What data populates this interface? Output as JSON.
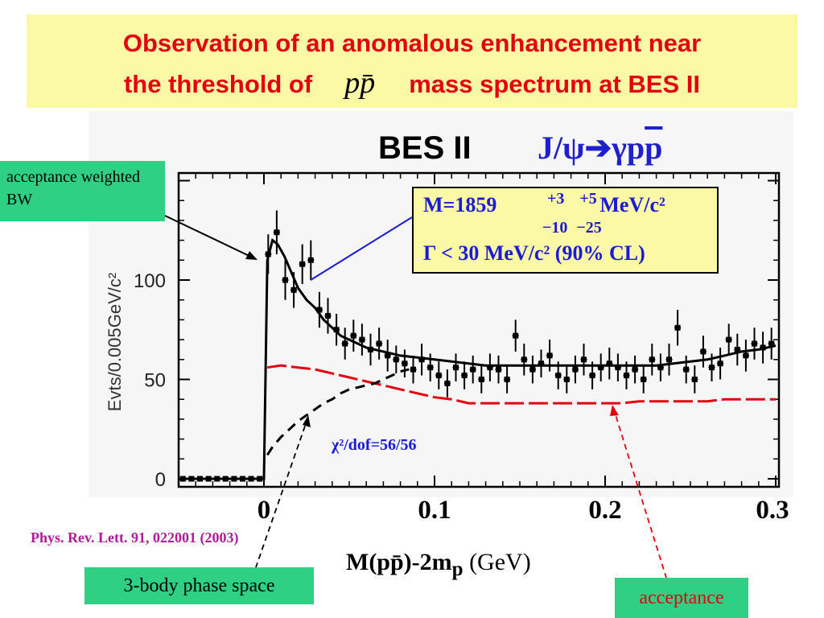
{
  "slide": {
    "title_line1": "Observation of an anomalous enhancement near",
    "title_line2_pre": "the threshold of",
    "title_line2_symbol": "pp̄",
    "title_line2_post": "mass spectrum at BES II",
    "title_color": "#e3000f",
    "title_bg": "#fbf8a6"
  },
  "experiment": "BES II",
  "reaction": {
    "prefix": "J/ψ",
    "arrow": "➔",
    "gamma": "γp",
    "pbar": "p",
    "color": "#1f1fd0"
  },
  "fit_box": {
    "mass_prefix": "M=1859",
    "mass_err_plus": "+3 +5",
    "mass_err_minus": "−10 −25",
    "mass_unit": "MeV/c²",
    "width_text": "Γ < 30 MeV/c² (90% CL)"
  },
  "chi2_text": "χ²/dof=56/56",
  "reference": "Phys. Rev. Lett. 91, 022001 (2003)",
  "x_axis_label": {
    "pre": "M(pp̄)-2m",
    "sub": "p",
    "post": " (GeV)"
  },
  "labels": {
    "acceptance_bw": "acceptance weighted BW",
    "phase_space": "3-body phase space",
    "acceptance": "acceptance"
  },
  "colors": {
    "label_green": "#2fd083",
    "acceptance_red": "#e3000f",
    "fit_text_blue": "#1a1ad9",
    "reference_magenta": "#b01b9a"
  },
  "chart_data": {
    "type": "scatter",
    "x_ticks": [
      "0",
      "0.1",
      "0.2",
      "0.3"
    ],
    "y_ticks": [
      "0",
      "50",
      "100"
    ],
    "y_axis_label": "Evts/0.005GeV/c²",
    "xlim": [
      -0.05,
      0.3
    ],
    "ylim": [
      -5,
      155
    ],
    "series": [
      {
        "name": "data",
        "kind": "points_with_errors",
        "x": [
          -0.0475,
          -0.0425,
          -0.0375,
          -0.0325,
          -0.0275,
          -0.0225,
          -0.0175,
          -0.0125,
          -0.0075,
          -0.0025,
          0.0025,
          0.0075,
          0.0125,
          0.0175,
          0.0225,
          0.0275,
          0.0325,
          0.0375,
          0.0425,
          0.0475,
          0.0525,
          0.0575,
          0.0625,
          0.0675,
          0.0725,
          0.0775,
          0.0825,
          0.0875,
          0.0925,
          0.0975,
          0.1025,
          0.1075,
          0.1125,
          0.1175,
          0.1225,
          0.1275,
          0.1325,
          0.1375,
          0.1425,
          0.1475,
          0.1525,
          0.1575,
          0.1625,
          0.1675,
          0.1725,
          0.1775,
          0.1825,
          0.1875,
          0.1925,
          0.1975,
          0.2025,
          0.2075,
          0.2125,
          0.2175,
          0.2225,
          0.2275,
          0.2325,
          0.2375,
          0.2425,
          0.2475,
          0.2525,
          0.2575,
          0.2625,
          0.2675,
          0.2725,
          0.2775,
          0.2825,
          0.2875,
          0.2925,
          0.2975
        ],
        "y": [
          0,
          0,
          0,
          0,
          0,
          0,
          0,
          0,
          0,
          0,
          113,
          124,
          100,
          95,
          108,
          110,
          85,
          82,
          75,
          68,
          72,
          70,
          65,
          68,
          62,
          60,
          58,
          55,
          60,
          56,
          52,
          48,
          56,
          52,
          55,
          50,
          56,
          55,
          50,
          72,
          60,
          55,
          58,
          62,
          52,
          50,
          55,
          60,
          52,
          56,
          58,
          56,
          52,
          55,
          50,
          60,
          56,
          60,
          76,
          55,
          50,
          64,
          56,
          58,
          70,
          65,
          62,
          68,
          66,
          68
        ],
        "err": [
          0,
          0,
          0,
          0,
          0,
          0,
          0,
          0,
          0,
          0,
          10,
          11,
          10,
          9,
          10,
          10,
          9,
          9,
          8,
          8,
          8,
          8,
          8,
          8,
          8,
          7,
          7,
          7,
          8,
          7,
          7,
          7,
          7,
          7,
          7,
          7,
          7,
          7,
          7,
          8,
          8,
          7,
          7,
          8,
          7,
          7,
          7,
          8,
          7,
          7,
          8,
          7,
          7,
          7,
          7,
          8,
          7,
          8,
          9,
          7,
          7,
          8,
          7,
          8,
          8,
          8,
          8,
          8,
          8,
          8
        ]
      },
      {
        "name": "acceptance weighted BW",
        "kind": "line",
        "x": [
          -0.05,
          -0.001,
          0.0,
          0.002,
          0.005,
          0.008,
          0.012,
          0.016,
          0.02,
          0.025,
          0.03,
          0.035,
          0.04,
          0.045,
          0.05,
          0.06,
          0.07,
          0.08,
          0.09,
          0.1,
          0.11,
          0.12,
          0.13,
          0.15,
          0.17,
          0.19,
          0.2,
          0.21,
          0.22,
          0.23,
          0.24,
          0.25,
          0.26,
          0.27,
          0.28,
          0.29,
          0.3
        ],
        "y": [
          0,
          0,
          0,
          110,
          120,
          118,
          112,
          104,
          96,
          90,
          86,
          80,
          76,
          72,
          70,
          66,
          64,
          62,
          61,
          60,
          59,
          58,
          57,
          57,
          57,
          57,
          57,
          57,
          57,
          57,
          58,
          59,
          60,
          62,
          64,
          65,
          67
        ]
      },
      {
        "name": "acceptance",
        "kind": "dashed_line",
        "x": [
          0.002,
          0.01,
          0.02,
          0.03,
          0.04,
          0.05,
          0.06,
          0.07,
          0.08,
          0.09,
          0.1,
          0.11,
          0.12,
          0.13,
          0.14,
          0.15,
          0.16,
          0.17,
          0.18,
          0.19,
          0.2,
          0.21,
          0.22,
          0.23,
          0.24,
          0.25,
          0.26,
          0.27,
          0.28,
          0.29,
          0.3
        ],
        "y": [
          56,
          57,
          56,
          55,
          53,
          51,
          49,
          47,
          45,
          43,
          41,
          40,
          38,
          38,
          38,
          38,
          38,
          38,
          38,
          38,
          38,
          38,
          39,
          39,
          39,
          39,
          39,
          40,
          40,
          40,
          40
        ]
      },
      {
        "name": "3-body phase space",
        "kind": "dashed_line",
        "x": [
          0.002,
          0.005,
          0.01,
          0.015,
          0.02,
          0.025,
          0.03,
          0.035,
          0.04,
          0.045,
          0.05,
          0.055,
          0.06,
          0.065,
          0.07,
          0.075,
          0.08,
          0.085
        ],
        "y": [
          12,
          16,
          21,
          25,
          29,
          32,
          35,
          38,
          40,
          43,
          45,
          46,
          47,
          48,
          50,
          52,
          54,
          55
        ]
      }
    ]
  }
}
